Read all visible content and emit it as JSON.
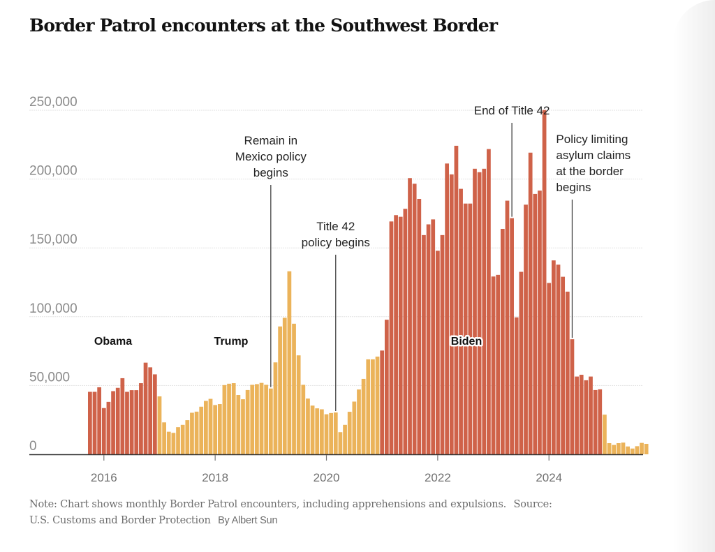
{
  "colors": {
    "red": "#CF6249",
    "yellow": "#EBB35A",
    "grid": "#e2e2e2",
    "axis": "#333333"
  },
  "chart_data": {
    "type": "bar",
    "title": "Border Patrol encounters at the Southwest Border",
    "xlabel": "",
    "ylabel": "",
    "start_month": "2015-10",
    "end_month": "2025-10",
    "ylim": [
      0,
      250000
    ],
    "yticks": [
      0,
      50000,
      100000,
      150000,
      200000,
      250000
    ],
    "ytick_labels": [
      "0",
      "50,000",
      "100,000",
      "150,000",
      "200,000",
      "250,000"
    ],
    "xticks": [
      "2016",
      "2018",
      "2020",
      "2022",
      "2024"
    ],
    "grid": true,
    "units": "monthly encounters (thousands in values array)",
    "values_thousands": [
      45.4,
      45.4,
      48.7,
      33.6,
      38.1,
      45.9,
      48.3,
      55.3,
      45.4,
      46.6,
      46.6,
      51.7,
      66.6,
      63.2,
      58.1,
      42.1,
      23.2,
      16.4,
      15.6,
      19.7,
      21.4,
      24.8,
      30.2,
      31.0,
      34.6,
      38.8,
      40.3,
      35.8,
      36.5,
      50.3,
      51.3,
      51.7,
      43.1,
      40.0,
      46.7,
      50.5,
      51.0,
      51.9,
      50.5,
      47.8,
      66.8,
      92.9,
      99.2,
      133.0,
      94.9,
      71.9,
      50.5,
      40.5,
      35.4,
      33.4,
      32.7,
      29.1,
      30.0,
      30.4,
      16.1,
      21.4,
      30.9,
      38.3,
      47.1,
      54.8,
      69.0,
      69.0,
      71.0,
      75.4,
      97.8,
      169.2,
      173.8,
      172.6,
      178.4,
      200.7,
      196.6,
      185.6,
      159.3,
      167.1,
      170.7,
      147.9,
      159.3,
      211.3,
      203.4,
      224.2,
      192.9,
      182.2,
      182.2,
      207.5,
      205.0,
      207.5,
      221.8,
      129.2,
      130.4,
      163.8,
      184.3,
      171.6,
      99.5,
      132.6,
      181.4,
      219.2,
      189.2,
      191.6,
      250.2,
      124.5,
      140.9,
      137.8,
      129.0,
      118.2,
      83.6,
      56.5,
      57.8,
      53.8,
      56.5,
      46.7,
      47.2,
      28.8,
      8.1,
      6.8,
      8.1,
      8.5,
      5.7,
      4.2,
      5.9,
      8.3,
      7.6
    ],
    "eras": [
      {
        "name": "Obama",
        "start": "2015-10",
        "end": "2016-12",
        "color": "red"
      },
      {
        "name": "Trump",
        "start": "2017-01",
        "end": "2020-12",
        "color": "yellow"
      },
      {
        "name": "Biden",
        "start": "2021-01",
        "end": "2024-12",
        "color": "red"
      },
      {
        "name": "",
        "start": "2025-01",
        "end": "2025-10",
        "color": "yellow"
      }
    ],
    "annotations": [
      {
        "month": "2019-01",
        "lines": [
          "Remain in",
          "Mexico policy",
          "begins"
        ],
        "align": "middle"
      },
      {
        "month": "2020-03",
        "lines": [
          "Title 42",
          "policy begins"
        ],
        "align": "middle"
      },
      {
        "month": "2023-05",
        "lines": [
          "End of Title 42"
        ],
        "align": "middle"
      },
      {
        "month": "2024-06",
        "lines": [
          "Policy limiting",
          "asylum claims",
          "at the border",
          "begins"
        ],
        "align": "start"
      }
    ]
  },
  "note": {
    "text": "Note: Chart shows monthly Border Patrol encounters, including apprehensions and expulsions.",
    "source": "Source: U.S. Customs and Border Protection",
    "byline": "By Albert Sun"
  }
}
